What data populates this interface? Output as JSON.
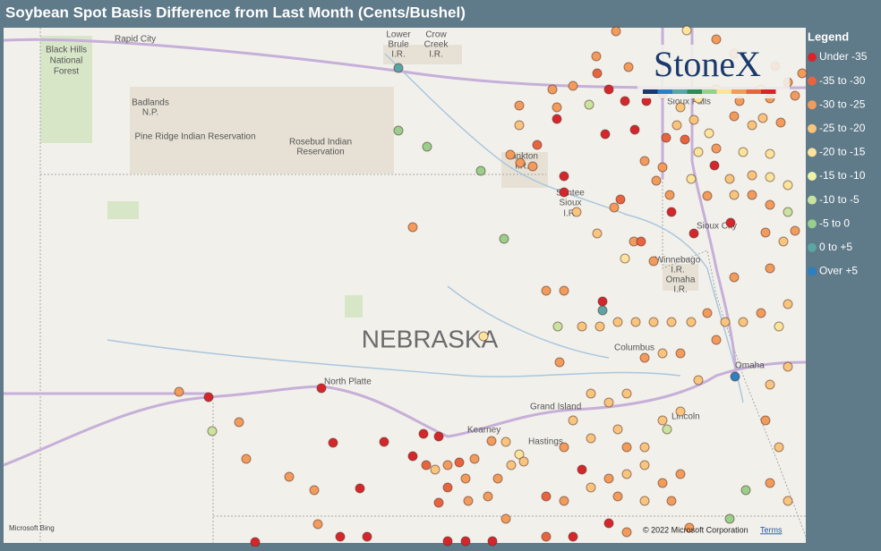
{
  "header": {
    "title": "Soybean Spot Basis Difference from Last Month (Cents/Bushel)"
  },
  "legend": {
    "title": "Legend",
    "items": [
      {
        "label": "Under -35",
        "color": "#d7262b"
      },
      {
        "label": "-35 to -30",
        "color": "#e8643f"
      },
      {
        "label": "-30 to -25",
        "color": "#f39b5a"
      },
      {
        "label": "-25 to -20",
        "color": "#f9c47c"
      },
      {
        "label": "-20 to -15",
        "color": "#fce49a"
      },
      {
        "label": "-15 to -10",
        "color": "#eef3a8"
      },
      {
        "label": "-10 to -5",
        "color": "#c9e49e"
      },
      {
        "label": "-5 to 0",
        "color": "#99cf8c"
      },
      {
        "label": "0 to +5",
        "color": "#5aa6a6"
      },
      {
        "label": "Over +5",
        "color": "#2c7fc0"
      }
    ]
  },
  "map": {
    "labels": [
      "Rapid City",
      [
        "Black Hills",
        "National",
        "Forest"
      ],
      [
        "Lower",
        "Brule",
        "I.R."
      ],
      [
        "Crow",
        "Creek",
        "I.R."
      ],
      [
        "Badlands",
        "N.P."
      ],
      "Pine Ridge Indian Reservation",
      [
        "Rosebud Indian",
        "Reservation"
      ],
      [
        "Yankton",
        "I.R."
      ],
      [
        "Santee",
        "Sioux",
        "I.R."
      ],
      "Sioux City",
      [
        "Winnebago",
        "I.R.",
        "Omaha",
        "I.R."
      ],
      "NEBRASKA",
      "Columbus",
      "Omaha",
      "North Platte",
      "Grand Island",
      "Kearney",
      "Hastings",
      "Lincoln",
      "Sioux Falls"
    ]
  },
  "logo": "StoneX",
  "attribution": {
    "provider": "Microsoft Bing",
    "copyright": "© 2022 Microsoft Corporation",
    "terms": "Terms"
  }
}
